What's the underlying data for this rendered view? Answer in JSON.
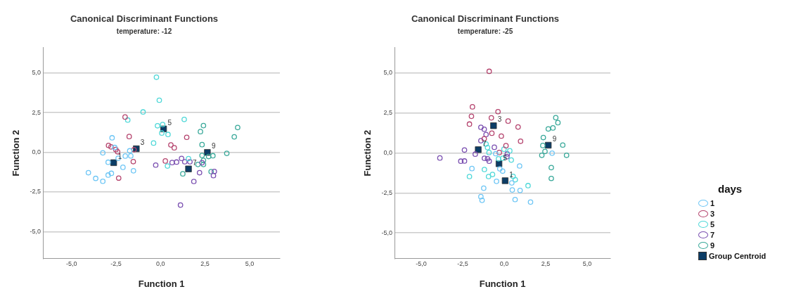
{
  "chart_data": [
    {
      "type": "scatter",
      "title": "Canonical Discriminant Functions",
      "subtitle": "temperature: -12",
      "xlabel": "Function 1",
      "ylabel": "Function 2",
      "xlim": [
        -6.6,
        6.7
      ],
      "ylim": [
        -6.7,
        6.6
      ],
      "xticks": [
        {
          "value": -5,
          "label": "-5,0"
        },
        {
          "value": -2.5,
          "label": "-2,5"
        },
        {
          "value": 0,
          "label": "0,0"
        },
        {
          "value": 2.5,
          "label": "2,5"
        },
        {
          "value": 5,
          "label": "5,0"
        }
      ],
      "yticks": [
        {
          "value": -5,
          "label": "-5,0"
        },
        {
          "value": -2.5,
          "label": "-2,5"
        },
        {
          "value": 0,
          "label": "0,0"
        },
        {
          "value": 2.5,
          "label": "2,5"
        },
        {
          "value": 5,
          "label": "5,0"
        }
      ],
      "grid": "y",
      "legend": false,
      "marker": "circle",
      "series": [
        {
          "color": "#6ec6f5",
          "x": [
            -2.72,
            -2.57,
            -3.24,
            -2.94,
            -2.38,
            -1.98,
            -1.67,
            -1.73,
            -2.11,
            -1.52,
            -4.05,
            -3.64,
            -3.24,
            -2.94,
            -2.76
          ],
          "values": [
            0.91,
            0.3,
            -0.04,
            -0.63,
            -0.38,
            -0.24,
            -0.23,
            0.09,
            -0.95,
            -1.17,
            -1.29,
            -1.65,
            -1.83,
            -1.44,
            -1.33
          ]
        },
        {
          "color": "#b5446e",
          "x": [
            -1.99,
            -1.76,
            -2.92,
            -2.78,
            -2.51,
            -2.41,
            -1.49,
            -1.53,
            -2.35,
            0.58,
            0.77,
            1.47,
            0.27
          ],
          "values": [
            2.22,
            0.99,
            0.43,
            0.34,
            0.17,
            0.03,
            0.16,
            -0.59,
            -1.63,
            0.46,
            0.28,
            0.94,
            -0.55
          ]
        },
        {
          "color": "#4fd8d8",
          "x": [
            -0.23,
            -0.07,
            -0.98,
            -1.84,
            -0.17,
            0.12,
            0.07,
            0.42,
            -0.39,
            1.33,
            0.39,
            1.57
          ],
          "values": [
            4.73,
            3.28,
            2.54,
            2.03,
            1.67,
            1.75,
            1.21,
            1.12,
            0.58,
            2.07,
            -0.87,
            -0.4
          ]
        },
        {
          "color": "#7a4fb0",
          "x": [
            -0.27,
            0.65,
            0.9,
            1.18,
            1.36,
            1.65,
            2.19,
            1.87,
            3.02,
            2.97,
            1.12,
            2.33
          ],
          "values": [
            -0.81,
            -0.65,
            -0.62,
            -0.39,
            -0.6,
            -0.6,
            -1.29,
            -1.84,
            -1.21,
            -1.47,
            -3.33,
            -0.66
          ]
        },
        {
          "color": "#3aa99a",
          "x": [
            2.41,
            2.24,
            2.33,
            4.14,
            4.33,
            3.72,
            2.94,
            2.7,
            2.33,
            2.41,
            2.1,
            2.41,
            2.84,
            1.25
          ],
          "values": [
            1.68,
            1.3,
            0.48,
            0.97,
            1.56,
            -0.07,
            -0.22,
            -0.27,
            -0.2,
            -0.51,
            -0.77,
            -0.77,
            -1.22,
            -1.36
          ]
        },
        {
          "color": "#0c3d66",
          "marker": "square",
          "x": [
            -2.63,
            -1.36,
            0.17,
            1.57,
            2.63
          ],
          "values": [
            -0.66,
            0.22,
            1.47,
            -1.05,
            -0.01
          ]
        }
      ],
      "annotations": [
        {
          "text": "1",
          "x": -2.63,
          "y": -0.66
        },
        {
          "text": "3",
          "x": -1.36,
          "y": 0.22
        },
        {
          "text": "5",
          "x": 0.17,
          "y": 1.47
        },
        {
          "text": "7",
          "x": 1.57,
          "y": -1.05
        },
        {
          "text": "9",
          "x": 2.63,
          "y": -0.01
        }
      ]
    },
    {
      "type": "scatter",
      "title": "Canonical Discriminant Functions",
      "subtitle": "temperature: -25",
      "xlabel": "Function 1",
      "ylabel": "Function 2",
      "xlim": [
        -6.6,
        6.4
      ],
      "ylim": [
        -6.6,
        6.6
      ],
      "xticks": [
        {
          "value": -5,
          "label": "-5,0"
        },
        {
          "value": -2.5,
          "label": "-2,5"
        },
        {
          "value": 0,
          "label": "0,0"
        },
        {
          "value": 2.5,
          "label": "2,5"
        },
        {
          "value": 5,
          "label": "5,0"
        }
      ],
      "yticks": [
        {
          "value": -5,
          "label": "-5,0"
        },
        {
          "value": -2.5,
          "label": "-2,5"
        },
        {
          "value": 0,
          "label": "0,0"
        },
        {
          "value": 2.5,
          "label": "2,5"
        },
        {
          "value": 5,
          "label": "5,0"
        }
      ],
      "grid": "y",
      "legend": "right",
      "legend_title": "days",
      "marker": "circle",
      "series": [
        {
          "name": "1",
          "color": "#6ec6f5",
          "x": [
            -0.51,
            -1.94,
            -0.26,
            -0.09,
            0.93,
            -0.46,
            0.46,
            -1.23,
            0.49,
            0.96,
            -1.4,
            -1.33,
            0.66,
            1.59,
            2.89
          ],
          "values": [
            -0.04,
            -0.97,
            -0.99,
            -1.13,
            -0.81,
            -1.77,
            -1.87,
            -2.2,
            -2.31,
            -2.34,
            -2.73,
            -2.96,
            -2.91,
            -3.07,
            -0.01
          ]
        },
        {
          "name": "3",
          "color": "#b5446e",
          "x": [
            -0.9,
            -1.91,
            -1.97,
            -2.09,
            -0.37,
            -0.77,
            0.24,
            0.84,
            -0.74,
            -0.17,
            -1.2,
            0.99,
            0.11,
            -0.29
          ],
          "values": [
            5.11,
            2.89,
            2.3,
            1.81,
            2.59,
            2.2,
            2.0,
            1.63,
            1.24,
            1.06,
            0.89,
            0.74,
            0.46,
            0.03
          ]
        },
        {
          "name": "5",
          "color": "#4fd8d8",
          "x": [
            -1.09,
            -1.0,
            -0.91,
            -0.01,
            0.34,
            0.43,
            -1.19,
            -2.09,
            -0.94,
            -0.7,
            0.54,
            0.67,
            1.44,
            -0.34,
            -0.09
          ],
          "values": [
            0.56,
            0.34,
            0.03,
            0.24,
            0.14,
            -0.44,
            -1.03,
            -1.47,
            -1.47,
            -1.34,
            -1.46,
            -1.67,
            -2.04,
            -0.36,
            -0.33
          ]
        },
        {
          "name": "7",
          "color": "#7a4fb0",
          "x": [
            -1.4,
            -1.2,
            -1.09,
            -1.4,
            -2.39,
            -3.87,
            -2.61,
            -2.39,
            -1.74,
            -1.19,
            -1.0,
            -0.9,
            -0.59,
            0.19,
            0.17
          ],
          "values": [
            1.61,
            1.49,
            1.16,
            0.77,
            0.19,
            -0.31,
            -0.51,
            -0.5,
            -0.07,
            -0.33,
            -0.36,
            -0.51,
            0.36,
            -0.06,
            -0.23
          ]
        },
        {
          "name": "9",
          "color": "#3aa99a",
          "x": [
            3.11,
            3.24,
            2.66,
            2.94,
            2.36,
            2.33,
            2.46,
            2.27,
            3.53,
            3.76,
            2.84,
            2.84
          ],
          "values": [
            2.21,
            1.9,
            1.51,
            1.57,
            0.97,
            0.47,
            0.1,
            -0.14,
            0.5,
            -0.14,
            -0.91,
            -1.59
          ]
        },
        {
          "name": "Group Centroid",
          "color": "#0c3d66",
          "marker": "square",
          "x": [
            0.06,
            -0.64,
            -0.31,
            -1.56,
            2.66
          ],
          "values": [
            -1.73,
            1.71,
            -0.67,
            0.21,
            0.49
          ]
        }
      ],
      "annotations": [
        {
          "text": "1",
          "x": 0.06,
          "y": -1.73
        },
        {
          "text": "3",
          "x": -0.64,
          "y": 1.71
        },
        {
          "text": "5",
          "x": -0.31,
          "y": -0.67
        },
        {
          "text": "7",
          "x": -1.56,
          "y": 0.21
        },
        {
          "text": "9",
          "x": 2.66,
          "y": 0.49
        }
      ]
    }
  ]
}
